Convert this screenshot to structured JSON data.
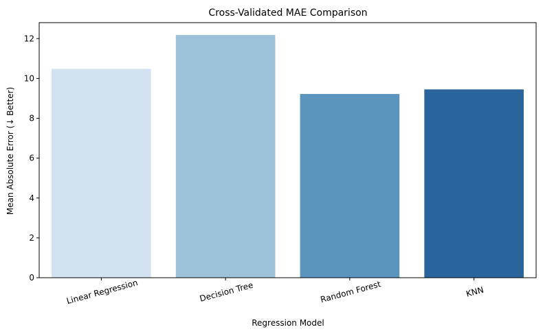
{
  "chart_data": {
    "type": "bar",
    "title": "Cross-Validated MAE Comparison",
    "xlabel": "Regression Model",
    "ylabel": "Mean Absolute Error (↓ Better)",
    "categories": [
      "Linear Regression",
      "Decision Tree",
      "Random Forest",
      "KNN"
    ],
    "values": [
      10.48,
      12.18,
      9.22,
      9.45
    ],
    "colors": [
      "#d3e2f0",
      "#9dc2d8",
      "#5b95bd",
      "#29649a"
    ],
    "ylim": [
      0,
      12.8
    ],
    "yticks": [
      0,
      2,
      4,
      6,
      8,
      10,
      12
    ],
    "grid": false,
    "legend": "none",
    "x_tick_rotation_deg": 15
  }
}
